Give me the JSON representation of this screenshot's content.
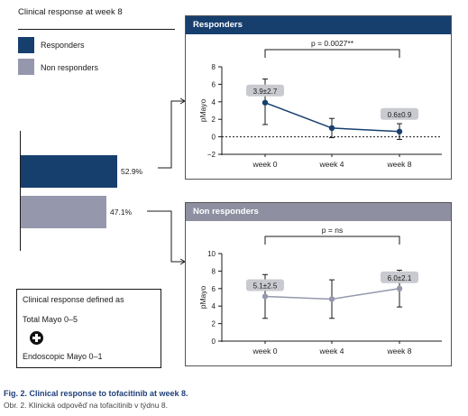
{
  "header": {
    "title": "Clinical response at week 8"
  },
  "legend": [
    {
      "label": "Responders",
      "color": "#173f6e"
    },
    {
      "label": "Non responders",
      "color": "#9598ad"
    }
  ],
  "bars": [
    {
      "label": "52.9%",
      "value": 52.9,
      "color": "#173f6e"
    },
    {
      "label": "47.1%",
      "value": 47.1,
      "color": "#9598ad"
    }
  ],
  "definition": {
    "title": "Clinical response defined as",
    "line1": "Total Mayo 0–5",
    "line2": "Endoscopic Mayo 0–1"
  },
  "caption": {
    "main": "Fig. 2. Clinical response to tofacitinib at week 8.",
    "sub": "Obr. 2. Klinická odpověď na tofacitinib v týdnu 8."
  },
  "chart_data": [
    {
      "type": "line",
      "title": "Responders",
      "ylabel": "pMayo",
      "categories": [
        "week 0",
        "week 4",
        "week 8"
      ],
      "values": [
        3.9,
        1.0,
        0.6
      ],
      "errors": [
        [
          1.4,
          6.6
        ],
        [
          -0.1,
          2.1
        ],
        [
          -0.3,
          1.5
        ]
      ],
      "ylim": [
        -2,
        8
      ],
      "yticks": [
        -2,
        0,
        2,
        4,
        6,
        8
      ],
      "color": "#173f6e",
      "zero_line": true,
      "annotations": [
        "3.9±2.7",
        "0.6±0.9"
      ],
      "significance": "p = 0.0027**"
    },
    {
      "type": "line",
      "title": "Non responders",
      "ylabel": "pMayo",
      "categories": [
        "week 0",
        "week 4",
        "week 8"
      ],
      "values": [
        5.1,
        4.8,
        6.0
      ],
      "errors": [
        [
          2.6,
          7.6
        ],
        [
          2.6,
          7.0
        ],
        [
          3.9,
          8.1
        ]
      ],
      "ylim": [
        0,
        10
      ],
      "yticks": [
        0,
        2,
        4,
        6,
        8,
        10
      ],
      "color": "#9598ad",
      "zero_line": false,
      "annotations": [
        "5.1±2.5",
        "6.0±2.1"
      ],
      "significance": "p = ns"
    }
  ]
}
